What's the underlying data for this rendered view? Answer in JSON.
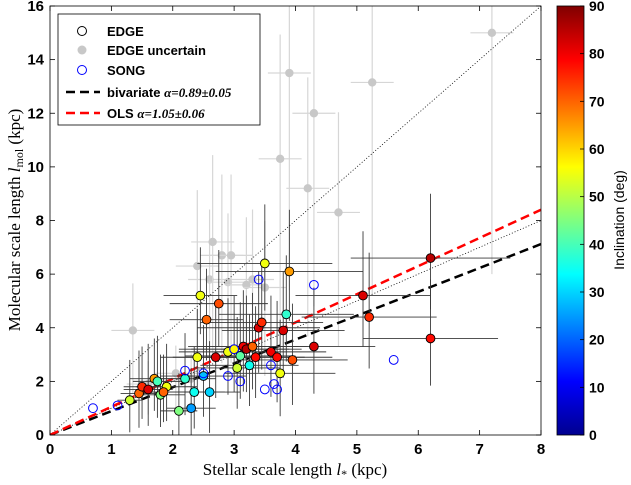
{
  "chart_data": {
    "type": "scatter",
    "xlabel_text": "Stellar scale length",
    "xlabel_sym": "l",
    "xlabel_sub": "*",
    "xlabel_unit": "(kpc)",
    "ylabel_text": "Molecular scale length",
    "ylabel_sym": "l",
    "ylabel_sub": "mol",
    "ylabel_unit": "(kpc)",
    "xlim": [
      0,
      8
    ],
    "ylim": [
      0,
      16
    ],
    "xticks": [
      "0",
      "1",
      "2",
      "3",
      "4",
      "5",
      "6",
      "7",
      "8"
    ],
    "yticks": [
      "0",
      "2",
      "4",
      "6",
      "8",
      "10",
      "12",
      "14",
      "16"
    ],
    "colorbar": {
      "label": "Inclination (deg)",
      "range": [
        0,
        90
      ],
      "ticks": [
        "0",
        "10",
        "20",
        "30",
        "40",
        "50",
        "60",
        "70",
        "80",
        "90"
      ]
    },
    "legend": {
      "placement": "top-left",
      "entries": [
        {
          "label": "EDGE",
          "marker": "open-circle-black"
        },
        {
          "label": "EDGE uncertain",
          "marker": "filled-circle-grey"
        },
        {
          "label": "SONG",
          "marker": "open-circle-blue"
        },
        {
          "label": "bivariate",
          "fit_alpha": "α=0.89±0.05",
          "line": "dashed-black"
        },
        {
          "label": "OLS",
          "fit_alpha": "α=1.05±0.06",
          "line": "dashed-red"
        }
      ]
    },
    "fits": {
      "one_to_one": {
        "slope": 2.0
      },
      "one_to_one_low": {
        "slope": 1.0
      },
      "bivariate": {
        "slope": 0.89
      },
      "ols": {
        "slope": 1.05
      }
    },
    "series": [
      {
        "name": "EDGE",
        "points": [
          [
            1.3,
            1.3,
            1.5,
            0.2,
            52
          ],
          [
            1.45,
            1.55,
            1.6,
            0.3,
            70
          ],
          [
            1.5,
            1.8,
            1.5,
            0.3,
            75
          ],
          [
            1.6,
            1.7,
            1.7,
            0.4,
            82
          ],
          [
            1.7,
            2.1,
            1.5,
            0.4,
            65
          ],
          [
            1.8,
            1.5,
            1.5,
            0.4,
            45
          ],
          [
            1.75,
            2.0,
            1.7,
            0.4,
            40
          ],
          [
            1.9,
            1.8,
            1.6,
            0.5,
            55
          ],
          [
            1.85,
            1.6,
            1.4,
            0.4,
            70
          ],
          [
            2.1,
            0.9,
            1.4,
            0.3,
            45
          ],
          [
            2.2,
            2.1,
            1.7,
            0.5,
            38
          ],
          [
            2.3,
            1.0,
            1.5,
            0.4,
            25
          ],
          [
            2.35,
            1.6,
            1.7,
            0.5,
            35
          ],
          [
            2.4,
            2.9,
            1.8,
            0.6,
            55
          ],
          [
            2.45,
            5.2,
            1.8,
            0.6,
            55
          ],
          [
            2.5,
            2.2,
            1.9,
            0.7,
            28
          ],
          [
            2.55,
            4.3,
            1.9,
            0.6,
            70
          ],
          [
            2.6,
            1.6,
            1.9,
            0.5,
            30
          ],
          [
            2.7,
            2.9,
            1.9,
            0.7,
            82
          ],
          [
            2.75,
            4.9,
            2.0,
            0.8,
            72
          ],
          [
            2.9,
            3.1,
            2.0,
            0.8,
            55
          ],
          [
            3.0,
            3.2,
            2.0,
            0.9,
            57
          ],
          [
            3.05,
            2.5,
            1.9,
            0.7,
            52
          ],
          [
            3.1,
            2.95,
            2.0,
            0.9,
            42
          ],
          [
            3.15,
            3.3,
            2.1,
            0.9,
            80
          ],
          [
            3.2,
            3.2,
            2.0,
            0.9,
            85
          ],
          [
            3.25,
            2.6,
            1.9,
            0.8,
            35
          ],
          [
            3.3,
            3.3,
            2.0,
            0.9,
            70
          ],
          [
            3.35,
            2.9,
            1.9,
            0.8,
            78
          ],
          [
            3.4,
            4.0,
            2.1,
            1.0,
            82
          ],
          [
            3.45,
            4.2,
            2.2,
            1.0,
            75
          ],
          [
            3.5,
            6.4,
            2.2,
            1.1,
            55
          ],
          [
            3.6,
            3.1,
            2.1,
            0.9,
            80
          ],
          [
            3.7,
            2.9,
            2.1,
            0.9,
            78
          ],
          [
            3.75,
            2.3,
            2.0,
            0.9,
            55
          ],
          [
            3.8,
            3.9,
            2.2,
            1.0,
            82
          ],
          [
            3.85,
            4.5,
            2.2,
            1.1,
            38
          ],
          [
            3.9,
            6.1,
            2.3,
            1.2,
            65
          ],
          [
            3.95,
            2.8,
            2.1,
            0.9,
            72
          ],
          [
            4.3,
            3.3,
            2.2,
            1.0,
            82
          ],
          [
            5.1,
            5.2,
            2.4,
            1.1,
            82
          ],
          [
            5.2,
            4.4,
            2.4,
            1.1,
            75
          ],
          [
            6.2,
            6.6,
            2.4,
            1.3,
            85
          ],
          [
            6.2,
            3.6,
            2.2,
            1.1,
            78
          ]
        ]
      },
      {
        "name": "EDGE uncertain",
        "points": [
          [
            1.35,
            3.9
          ],
          [
            1.6,
            1.9
          ],
          [
            2.05,
            2.3
          ],
          [
            2.3,
            2.1
          ],
          [
            2.4,
            6.3
          ],
          [
            2.6,
            5.8
          ],
          [
            2.65,
            7.2
          ],
          [
            2.8,
            6.7
          ],
          [
            2.9,
            5.7
          ],
          [
            2.95,
            6.7
          ],
          [
            3.2,
            5.6
          ],
          [
            3.3,
            5.8
          ],
          [
            3.5,
            5.5
          ],
          [
            3.75,
            10.3
          ],
          [
            3.9,
            13.5
          ],
          [
            4.2,
            9.2
          ],
          [
            4.3,
            12.0
          ],
          [
            4.7,
            8.3
          ],
          [
            5.25,
            13.15
          ],
          [
            7.2,
            15.0
          ]
        ]
      },
      {
        "name": "SONG",
        "points": [
          [
            0.7,
            1.0
          ],
          [
            1.1,
            1.1
          ],
          [
            2.2,
            2.4
          ],
          [
            2.5,
            2.3
          ],
          [
            2.9,
            2.2
          ],
          [
            3.0,
            3.2
          ],
          [
            3.1,
            2.0
          ],
          [
            3.4,
            5.8
          ],
          [
            3.5,
            1.7
          ],
          [
            3.6,
            2.6
          ],
          [
            3.65,
            1.9
          ],
          [
            3.7,
            1.7
          ],
          [
            4.3,
            5.6
          ],
          [
            5.6,
            2.8
          ]
        ]
      }
    ]
  }
}
